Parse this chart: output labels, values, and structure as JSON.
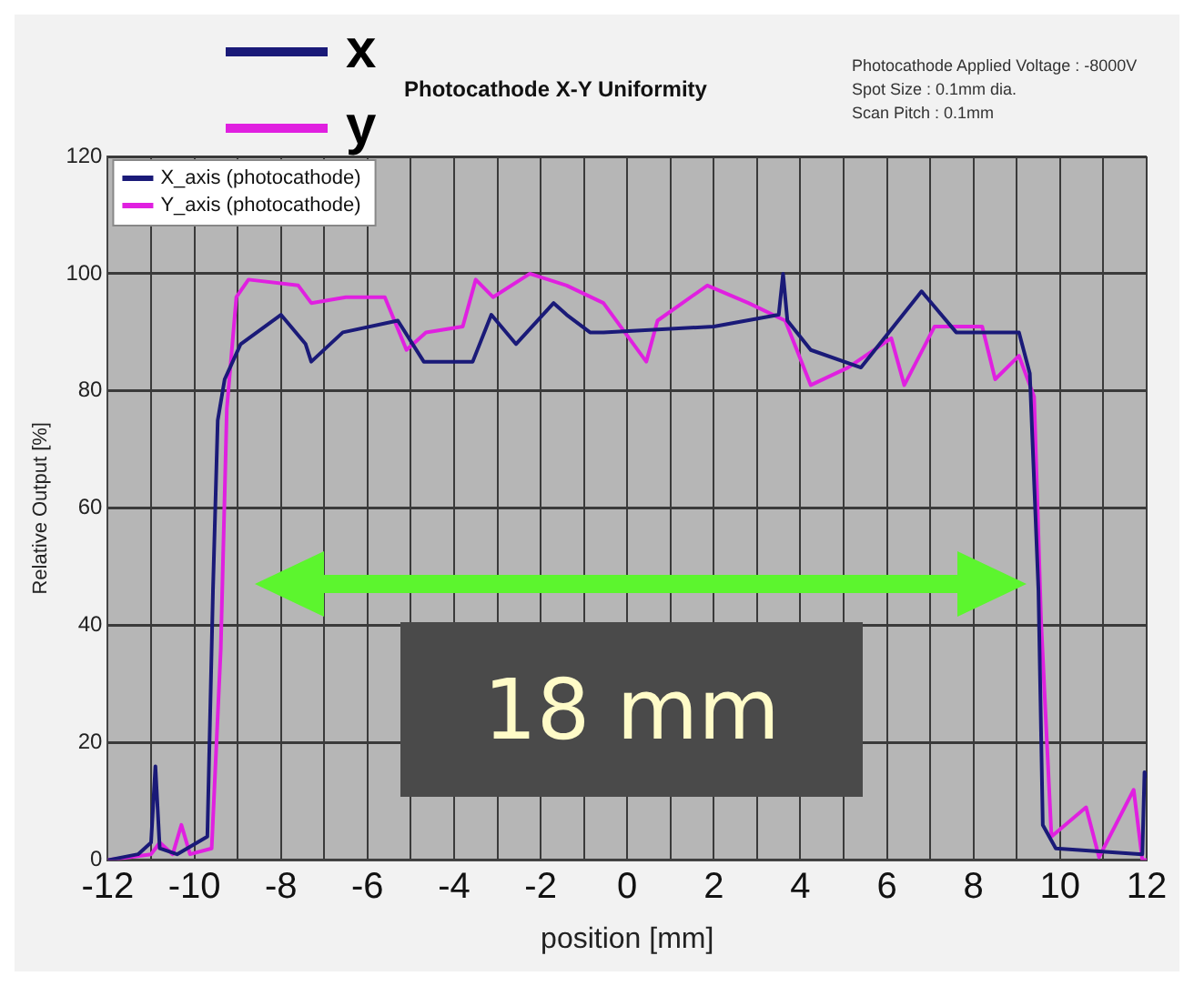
{
  "chart_data": {
    "type": "line",
    "title": "Photocathode X-Y Uniformity",
    "xlabel": "position [mm]",
    "ylabel": "Relative Output [%]",
    "annotations": [
      "x",
      "y",
      "Photocathode Applied Voltage : -8000V",
      "Spot Size : 0.1mm dia.",
      "Scan Pitch : 0.1mm",
      "18 mm"
    ],
    "xlim": [
      -12,
      12
    ],
    "ylim": [
      0,
      120
    ],
    "xticks": [
      -12,
      {
        "value": -11,
        "label": null
      },
      -10,
      {
        "value": -9,
        "label": null
      },
      -8,
      {
        "value": -7,
        "label": null
      },
      -6,
      {
        "value": -5,
        "label": null
      },
      -4,
      {
        "value": -3,
        "label": null
      },
      -2,
      {
        "value": -1,
        "label": null
      },
      0,
      {
        "value": 1,
        "label": null
      },
      2,
      {
        "value": 3,
        "label": null
      },
      4,
      {
        "value": 5,
        "label": null
      },
      6,
      {
        "value": 7,
        "label": null
      },
      8,
      {
        "value": 9,
        "label": null
      },
      10,
      {
        "value": 11,
        "label": null
      },
      12
    ],
    "yticks": [
      0,
      20,
      40,
      60,
      80,
      100,
      120
    ],
    "grid": true,
    "legend": "top left",
    "marker": "none",
    "series": [
      {
        "name": "X_axis (photocathode)",
        "color": "#1a1a78",
        "x": [
          -12,
          -11.3,
          -11,
          -10.9,
          -10.8,
          -10.4,
          -9.7,
          -9.57,
          -9.46,
          -9.3,
          -8.93,
          -8,
          -7.43,
          -7.3,
          -6.57,
          -5.3,
          -4.7,
          -3.57,
          -3.14,
          -2.57,
          -1.7,
          -1.4,
          -0.86,
          -0.55,
          2,
          3.5,
          3.6,
          3.7,
          4.24,
          5.4,
          6.8,
          7.6,
          9.05,
          9.3,
          9.5,
          9.6,
          9.9,
          11.9,
          11.95,
          12
        ],
        "values": [
          0,
          1,
          3,
          16,
          2,
          1,
          4,
          46,
          75,
          82,
          88,
          93,
          88,
          85,
          90,
          92,
          85,
          85,
          93,
          88,
          95,
          93,
          90,
          90,
          91,
          93,
          100,
          92,
          87,
          84,
          97,
          90,
          90,
          83,
          46,
          6,
          2,
          1,
          15,
          14
        ]
      },
      {
        "name": "Y_axis (photocathode)",
        "color": "#e020e0",
        "x": [
          -12,
          -11,
          -10.9,
          -10.8,
          -10.5,
          -10.3,
          -10.1,
          -9.6,
          -9.39,
          -9.25,
          -9.03,
          -8.75,
          -7.6,
          -7.3,
          -6.5,
          -5.6,
          -5.1,
          -4.65,
          -3.8,
          -3.5,
          -3.1,
          -2.25,
          -1.4,
          -0.55,
          0.44,
          0.7,
          1.85,
          2.8,
          3.65,
          4.24,
          5.1,
          6.1,
          6.4,
          7.1,
          8.2,
          8.5,
          9.05,
          9.4,
          9.56,
          9.8,
          10.6,
          10.9,
          11.7,
          11.9,
          12
        ],
        "values": [
          0,
          1,
          2,
          3,
          1,
          6,
          1,
          2,
          36,
          77,
          96,
          99,
          98,
          95,
          96,
          96,
          87,
          90,
          91,
          99,
          96,
          100,
          98,
          95,
          85,
          92,
          98,
          95,
          92,
          81,
          84,
          89,
          81,
          91,
          91,
          82,
          86,
          79,
          41,
          4,
          9,
          0.5,
          12,
          0,
          0
        ]
      }
    ]
  }
}
